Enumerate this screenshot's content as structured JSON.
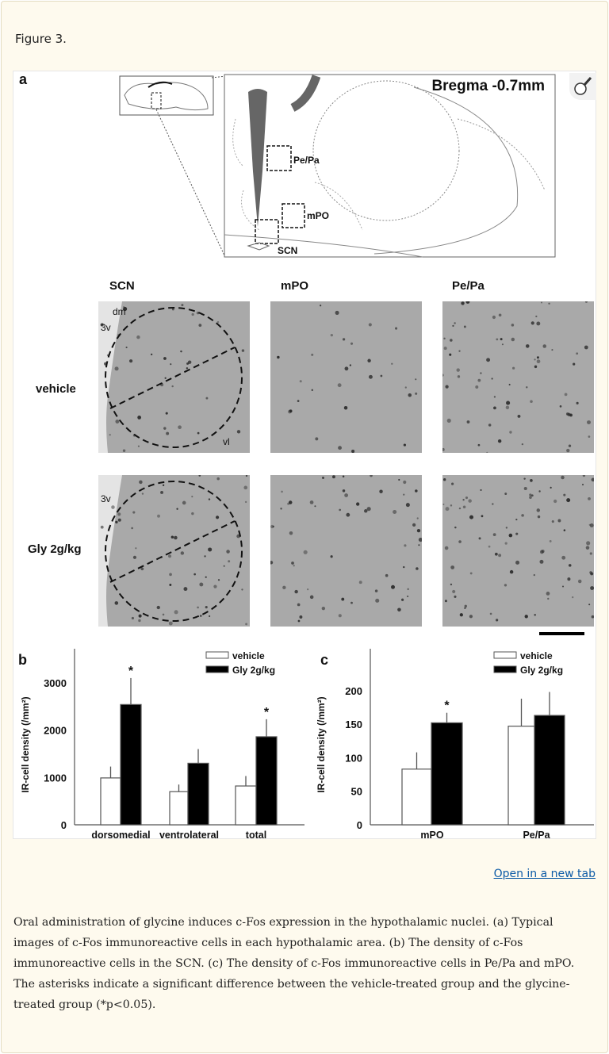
{
  "figure_title": "Figure 3.",
  "panel_a": {
    "label": "a",
    "bregma": "Bregma -0.7mm",
    "schematic_labels": [
      "Pe/Pa",
      "mPO",
      "SCN"
    ],
    "columns": [
      "SCN",
      "mPO",
      "Pe/Pa"
    ],
    "rows": [
      "vehicle",
      "Gly 2g/kg"
    ],
    "tile_labels": {
      "dm": "dm",
      "v3": "3v",
      "vl": "vl"
    }
  },
  "zoom_icon": "magnifier-icon",
  "chart_data": [
    {
      "type": "bar",
      "panel": "b",
      "categories": [
        "dorsomedial",
        "ventrolateral",
        "total"
      ],
      "ylabel": "IR-cell density (/mm²)",
      "ylim": [
        0,
        3400
      ],
      "yticks": [
        0,
        1000,
        2000,
        3000
      ],
      "series": [
        {
          "name": "vehicle",
          "color": "#ffffff",
          "values": [
            990,
            700,
            820
          ],
          "error_top": [
            1230,
            850,
            1030
          ]
        },
        {
          "name": "Gly 2g/kg",
          "color": "#000000",
          "values": [
            2540,
            1300,
            1860
          ],
          "error_top": [
            3100,
            1600,
            2230
          ]
        }
      ],
      "significance": [
        "*",
        "",
        "*"
      ],
      "legend": "top-right",
      "grid": false
    },
    {
      "type": "bar",
      "panel": "c",
      "categories": [
        "mPO",
        "Pe/Pa"
      ],
      "ylabel": "IR-cell density (/mm²)",
      "ylim": [
        0,
        240
      ],
      "yticks": [
        0,
        50,
        100,
        150,
        200
      ],
      "series": [
        {
          "name": "vehicle",
          "color": "#ffffff",
          "values": [
            83,
            147
          ],
          "error_top": [
            108,
            188
          ]
        },
        {
          "name": "Gly 2g/kg",
          "color": "#000000",
          "values": [
            152,
            163
          ],
          "error_top": [
            167,
            198
          ]
        }
      ],
      "significance": [
        "*",
        ""
      ],
      "legend": "top-right",
      "grid": false
    }
  ],
  "open_tab": "Open in a new tab",
  "caption": "Oral administration of glycine induces c-Fos expression in the hypothalamic nuclei. (a) Typical images of c-Fos immunoreactive cells in each hypothalamic area. (b) The density of c-Fos immunoreactive cells in the SCN. (c) The density of c-Fos immunoreactive cells in Pe/Pa and mPO. The asterisks indicate a significant difference between the vehicle-treated group and the glycine-treated group (*p<0.05)."
}
